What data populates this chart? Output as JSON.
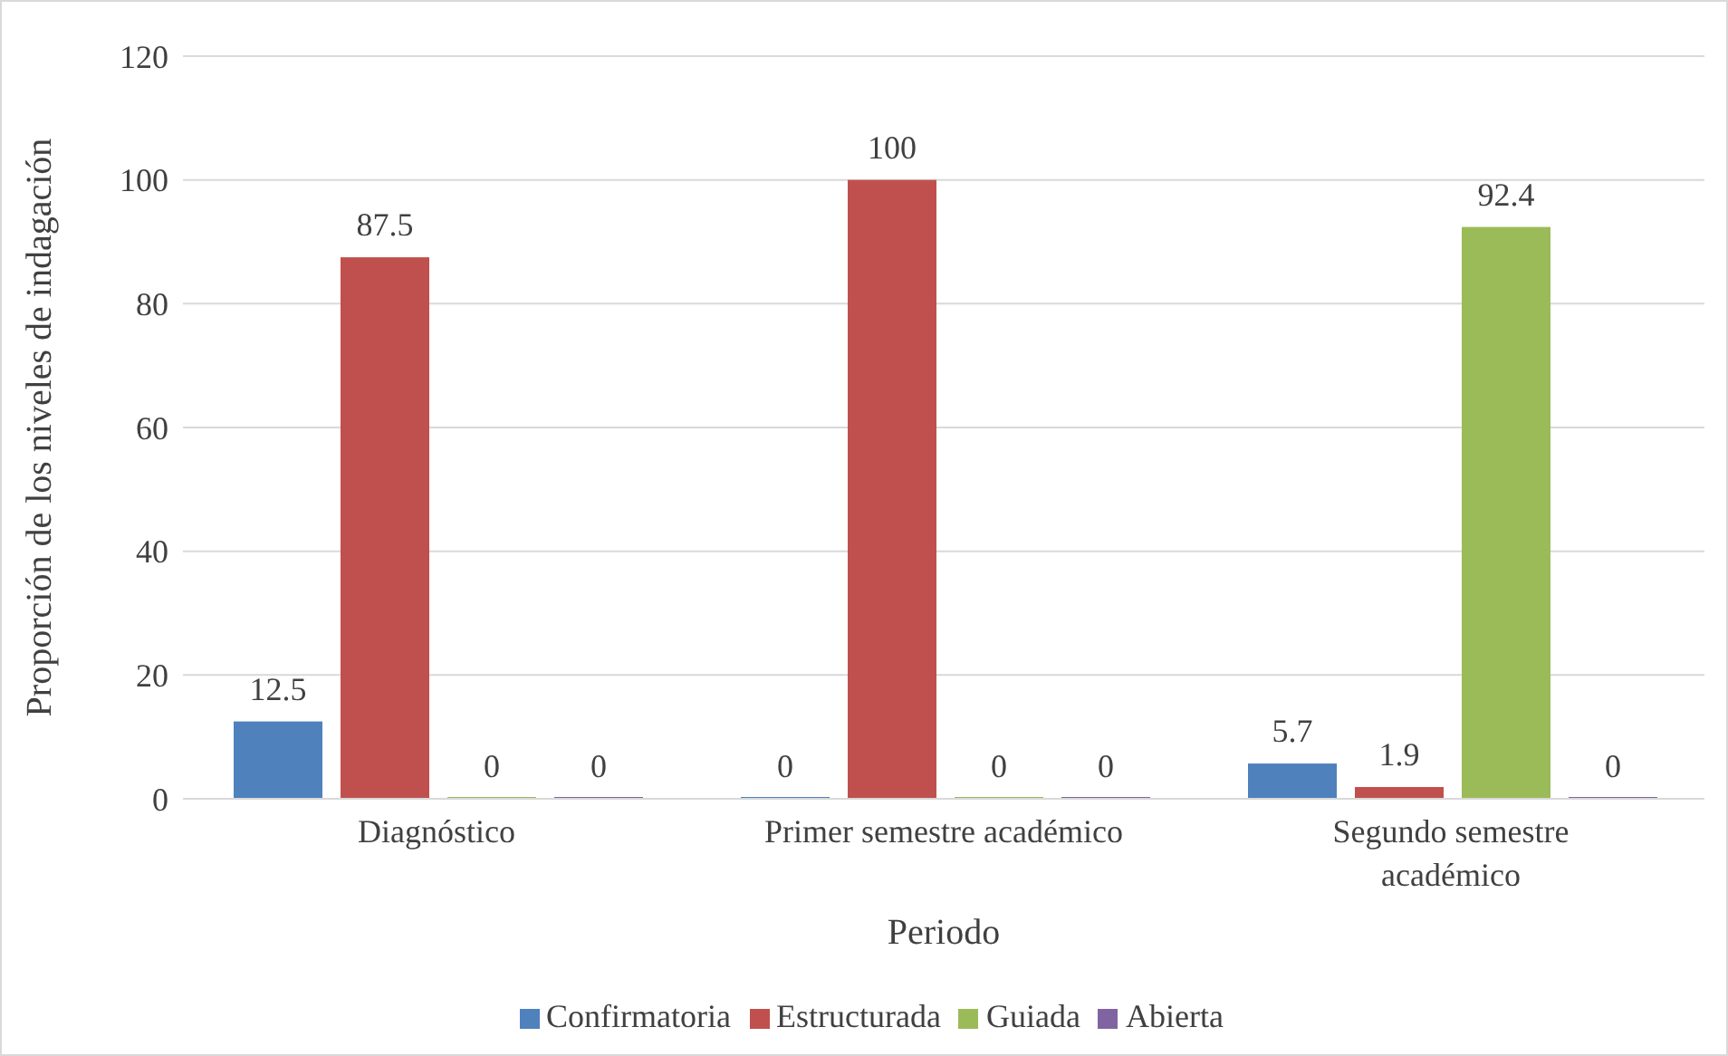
{
  "chart_data": {
    "type": "bar",
    "xlabel": "Periodo",
    "ylabel": "Proporción de los niveles de indagación",
    "categories": [
      "Diagnóstico",
      "Primer semestre académico",
      "Segundo semestre académico"
    ],
    "series": [
      {
        "name": "Confirmatoria",
        "color": "#4f81bd",
        "values": [
          12.5,
          0,
          5.7
        ]
      },
      {
        "name": "Estructurada",
        "color": "#c0504d",
        "values": [
          87.5,
          100,
          1.9
        ]
      },
      {
        "name": "Guiada",
        "color": "#9bbb59",
        "values": [
          0,
          0,
          92.4
        ]
      },
      {
        "name": "Abierta",
        "color": "#8064a2",
        "values": [
          0,
          0,
          0
        ]
      }
    ],
    "ylim": [
      0,
      120
    ],
    "yticks": [
      0,
      20,
      40,
      60,
      80,
      100,
      120
    ],
    "grid": "y",
    "legend": "bottom",
    "data_labels": true
  }
}
